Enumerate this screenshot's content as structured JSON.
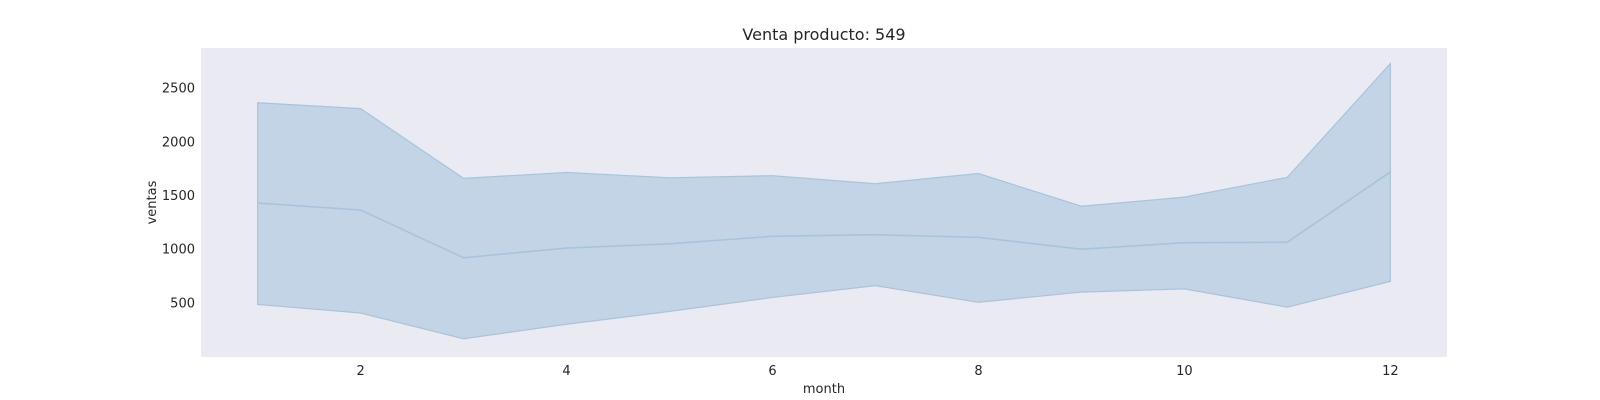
{
  "chart_data": {
    "type": "line",
    "title": "Venta producto: 549",
    "xlabel": "month",
    "ylabel": "ventas",
    "xlim": [
      0.45,
      12.55
    ],
    "ylim": [
      -10,
      2870
    ],
    "x_ticks": [
      2,
      4,
      6,
      8,
      10,
      12
    ],
    "y_ticks": [
      500,
      1000,
      1500,
      2000,
      2500
    ],
    "grid": false,
    "background": "#eaeaf2",
    "series": [
      {
        "color": "#3274a1",
        "band_color": "#a8c4dd",
        "x": [
          1,
          2,
          3,
          4,
          5,
          6,
          7,
          8,
          9,
          10,
          11,
          12
        ],
        "y": [
          1425,
          1360,
          915,
          1005,
          1045,
          1115,
          1130,
          1105,
          995,
          1055,
          1060,
          1715
        ],
        "lower": [
          480,
          400,
          160,
          295,
          415,
          545,
          655,
          500,
          595,
          625,
          455,
          695
        ],
        "upper": [
          2360,
          2305,
          1655,
          1710,
          1660,
          1680,
          1605,
          1700,
          1395,
          1480,
          1665,
          2725
        ]
      }
    ]
  }
}
